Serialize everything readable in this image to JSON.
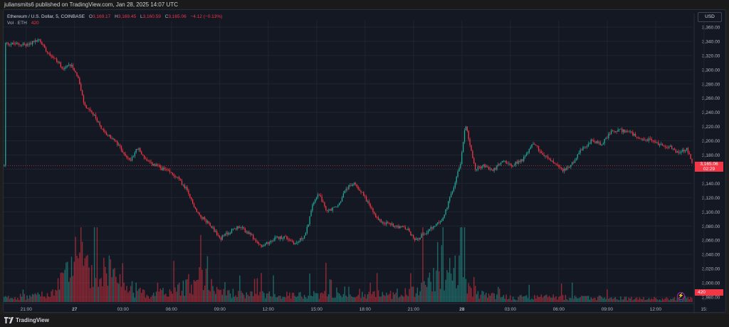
{
  "header": {
    "published_text": "juliansmits6 published on TradingView.com, Jan 28, 2025 14:07 UTC"
  },
  "legend": {
    "symbol": "Ethereum / U.S. Dollar, 5, COINBASE",
    "open_label": "O",
    "open": "3,169.17",
    "high_label": "H",
    "high": "3,169.45",
    "low_label": "L",
    "low": "3,160.59",
    "close_label": "C",
    "close": "3,165.06",
    "change": "−4.12 (−0.13%)",
    "volume_label": "Vol · ETH",
    "volume_value": "420"
  },
  "currency_button": "USD",
  "last_price": {
    "price": "3,165.06",
    "countdown": "02:29"
  },
  "volume_tag": "420",
  "footer": {
    "brand": "TradingView"
  },
  "colors": {
    "up": "#26a69a",
    "down": "#f23645",
    "background": "#141823",
    "grid": "#1f2430"
  },
  "chart_data": {
    "type": "candlestick",
    "interval": "5",
    "y_ticks": [
      3360,
      3340,
      3320,
      3300,
      3280,
      3260,
      3240,
      3220,
      3200,
      3180,
      3160,
      3140,
      3120,
      3100,
      3080,
      3060,
      3040,
      3020,
      3000,
      2980
    ],
    "y_tick_labels": [
      "3,360.00",
      "3,340.00",
      "3,320.00",
      "3,300.00",
      "3,280.00",
      "3,260.00",
      "3,240.00",
      "3,220.00",
      "3,200.00",
      "3,180.00",
      "3,160.00",
      "3,140.00",
      "3,120.00",
      "3,100.00",
      "3,080.00",
      "3,060.00",
      "3,040.00",
      "3,020.00",
      "3,000.00",
      "2,980.00"
    ],
    "ylim": [
      2972,
      3370
    ],
    "x_tick_labels": [
      "21:00",
      "27",
      "03:00",
      "06:00",
      "09:00",
      "12:00",
      "15:00",
      "18:00",
      "21:00",
      "28",
      "03:00",
      "06:00",
      "09:00",
      "12:00",
      "15:"
    ],
    "x_tick_hours": [
      0,
      3,
      6,
      9,
      12,
      15,
      18,
      21,
      24,
      27,
      30,
      33,
      36,
      39,
      42
    ],
    "x_range_hours": [
      -1.4,
      41.3
    ],
    "price_path": [
      [
        -1.3,
        3337
      ],
      [
        0.0,
        3335
      ],
      [
        0.8,
        3342
      ],
      [
        1.3,
        3326
      ],
      [
        1.9,
        3312
      ],
      [
        2.3,
        3302
      ],
      [
        2.8,
        3308
      ],
      [
        3.2,
        3290
      ],
      [
        3.6,
        3250
      ],
      [
        4.2,
        3235
      ],
      [
        4.8,
        3212
      ],
      [
        5.4,
        3202
      ],
      [
        6.0,
        3185
      ],
      [
        6.4,
        3172
      ],
      [
        6.9,
        3190
      ],
      [
        7.5,
        3170
      ],
      [
        8.5,
        3160
      ],
      [
        9.3,
        3150
      ],
      [
        9.9,
        3132
      ],
      [
        10.6,
        3098
      ],
      [
        11.4,
        3082
      ],
      [
        12.0,
        3062
      ],
      [
        12.6,
        3072
      ],
      [
        13.2,
        3080
      ],
      [
        14.0,
        3065
      ],
      [
        14.6,
        3050
      ],
      [
        15.3,
        3062
      ],
      [
        16.0,
        3065
      ],
      [
        16.7,
        3055
      ],
      [
        17.3,
        3068
      ],
      [
        17.8,
        3115
      ],
      [
        18.1,
        3128
      ],
      [
        18.6,
        3100
      ],
      [
        19.3,
        3108
      ],
      [
        19.8,
        3132
      ],
      [
        20.3,
        3140
      ],
      [
        20.7,
        3130
      ],
      [
        21.2,
        3112
      ],
      [
        21.7,
        3090
      ],
      [
        22.3,
        3084
      ],
      [
        23.0,
        3080
      ],
      [
        23.6,
        3075
      ],
      [
        24.1,
        3060
      ],
      [
        24.8,
        3072
      ],
      [
        25.3,
        3080
      ],
      [
        25.8,
        3090
      ],
      [
        26.4,
        3130
      ],
      [
        26.9,
        3170
      ],
      [
        27.2,
        3225
      ],
      [
        27.5,
        3192
      ],
      [
        27.8,
        3160
      ],
      [
        28.3,
        3165
      ],
      [
        28.9,
        3158
      ],
      [
        29.5,
        3172
      ],
      [
        30.1,
        3166
      ],
      [
        30.8,
        3175
      ],
      [
        31.4,
        3198
      ],
      [
        32.0,
        3180
      ],
      [
        32.6,
        3170
      ],
      [
        33.2,
        3158
      ],
      [
        33.8,
        3168
      ],
      [
        34.4,
        3188
      ],
      [
        35.0,
        3200
      ],
      [
        35.6,
        3195
      ],
      [
        36.2,
        3212
      ],
      [
        36.8,
        3215
      ],
      [
        37.4,
        3212
      ],
      [
        38.0,
        3200
      ],
      [
        38.6,
        3202
      ],
      [
        39.2,
        3195
      ],
      [
        39.8,
        3192
      ],
      [
        40.4,
        3183
      ],
      [
        40.9,
        3188
      ],
      [
        41.3,
        3165
      ]
    ],
    "volume_profile": [
      [
        -1.3,
        8
      ],
      [
        0,
        10
      ],
      [
        1.5,
        14
      ],
      [
        2.3,
        40
      ],
      [
        3.2,
        90
      ],
      [
        4.0,
        45
      ],
      [
        5.0,
        70
      ],
      [
        6.0,
        25
      ],
      [
        7.5,
        15
      ],
      [
        9.0,
        18
      ],
      [
        10.5,
        35
      ],
      [
        11.2,
        60
      ],
      [
        12.0,
        22
      ],
      [
        13.5,
        12
      ],
      [
        15.0,
        15
      ],
      [
        16.5,
        12
      ],
      [
        18.0,
        14
      ],
      [
        19.5,
        20
      ],
      [
        21.0,
        15
      ],
      [
        22.5,
        14
      ],
      [
        24.0,
        20
      ],
      [
        25.0,
        40
      ],
      [
        26.0,
        50
      ],
      [
        26.8,
        60
      ],
      [
        27.2,
        35
      ],
      [
        28.0,
        15
      ],
      [
        30.0,
        8
      ],
      [
        32.0,
        10
      ],
      [
        34.0,
        8
      ],
      [
        36.0,
        7
      ],
      [
        38.0,
        6
      ],
      [
        40.0,
        6
      ],
      [
        41.3,
        8
      ]
    ]
  }
}
